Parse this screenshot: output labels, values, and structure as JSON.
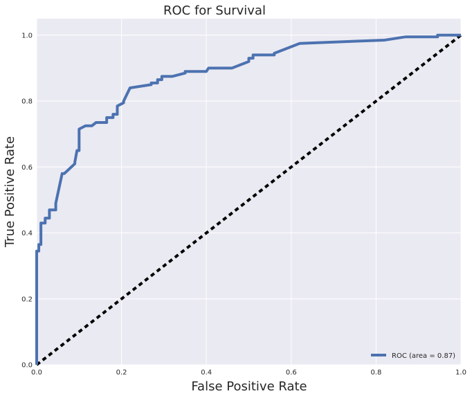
{
  "chart_data": {
    "type": "line",
    "title": "ROC for Survival",
    "xlabel": "False Positive Rate",
    "ylabel": "True Positive Rate",
    "xlim": [
      0.0,
      1.0
    ],
    "ylim": [
      0.0,
      1.05
    ],
    "x_ticks": [
      "0.0",
      "0.2",
      "0.4",
      "0.6",
      "0.8",
      "1.0"
    ],
    "y_ticks": [
      "0.0",
      "0.2",
      "0.4",
      "0.6",
      "0.8",
      "1.0"
    ],
    "grid": true,
    "legend_position": "lower-right",
    "series": [
      {
        "name": "ROC (area = 0.87)",
        "color": "#4c72b0",
        "style": "solid",
        "x": [
          0.0,
          0.0,
          0.005,
          0.005,
          0.01,
          0.01,
          0.02,
          0.02,
          0.03,
          0.03,
          0.045,
          0.045,
          0.06,
          0.065,
          0.09,
          0.09,
          0.095,
          0.1,
          0.1,
          0.115,
          0.13,
          0.14,
          0.165,
          0.165,
          0.18,
          0.18,
          0.19,
          0.19,
          0.205,
          0.205,
          0.22,
          0.27,
          0.27,
          0.285,
          0.285,
          0.295,
          0.295,
          0.32,
          0.35,
          0.35,
          0.4,
          0.405,
          0.46,
          0.5,
          0.5,
          0.51,
          0.51,
          0.56,
          0.56,
          0.6,
          0.62,
          0.82,
          0.87,
          0.945,
          0.945,
          1.0
        ],
        "y": [
          0.0,
          0.345,
          0.345,
          0.365,
          0.365,
          0.43,
          0.43,
          0.445,
          0.445,
          0.47,
          0.47,
          0.49,
          0.58,
          0.58,
          0.61,
          0.615,
          0.65,
          0.65,
          0.715,
          0.725,
          0.725,
          0.735,
          0.735,
          0.75,
          0.75,
          0.76,
          0.76,
          0.785,
          0.795,
          0.8,
          0.84,
          0.85,
          0.855,
          0.855,
          0.865,
          0.865,
          0.875,
          0.875,
          0.885,
          0.89,
          0.89,
          0.9,
          0.9,
          0.92,
          0.93,
          0.93,
          0.94,
          0.94,
          0.945,
          0.965,
          0.975,
          0.985,
          0.995,
          0.995,
          1.0,
          1.0
        ]
      },
      {
        "name": "",
        "color": "#000000",
        "style": "dashed",
        "x": [
          0.0,
          1.0
        ],
        "y": [
          0.0,
          1.0
        ]
      }
    ]
  }
}
